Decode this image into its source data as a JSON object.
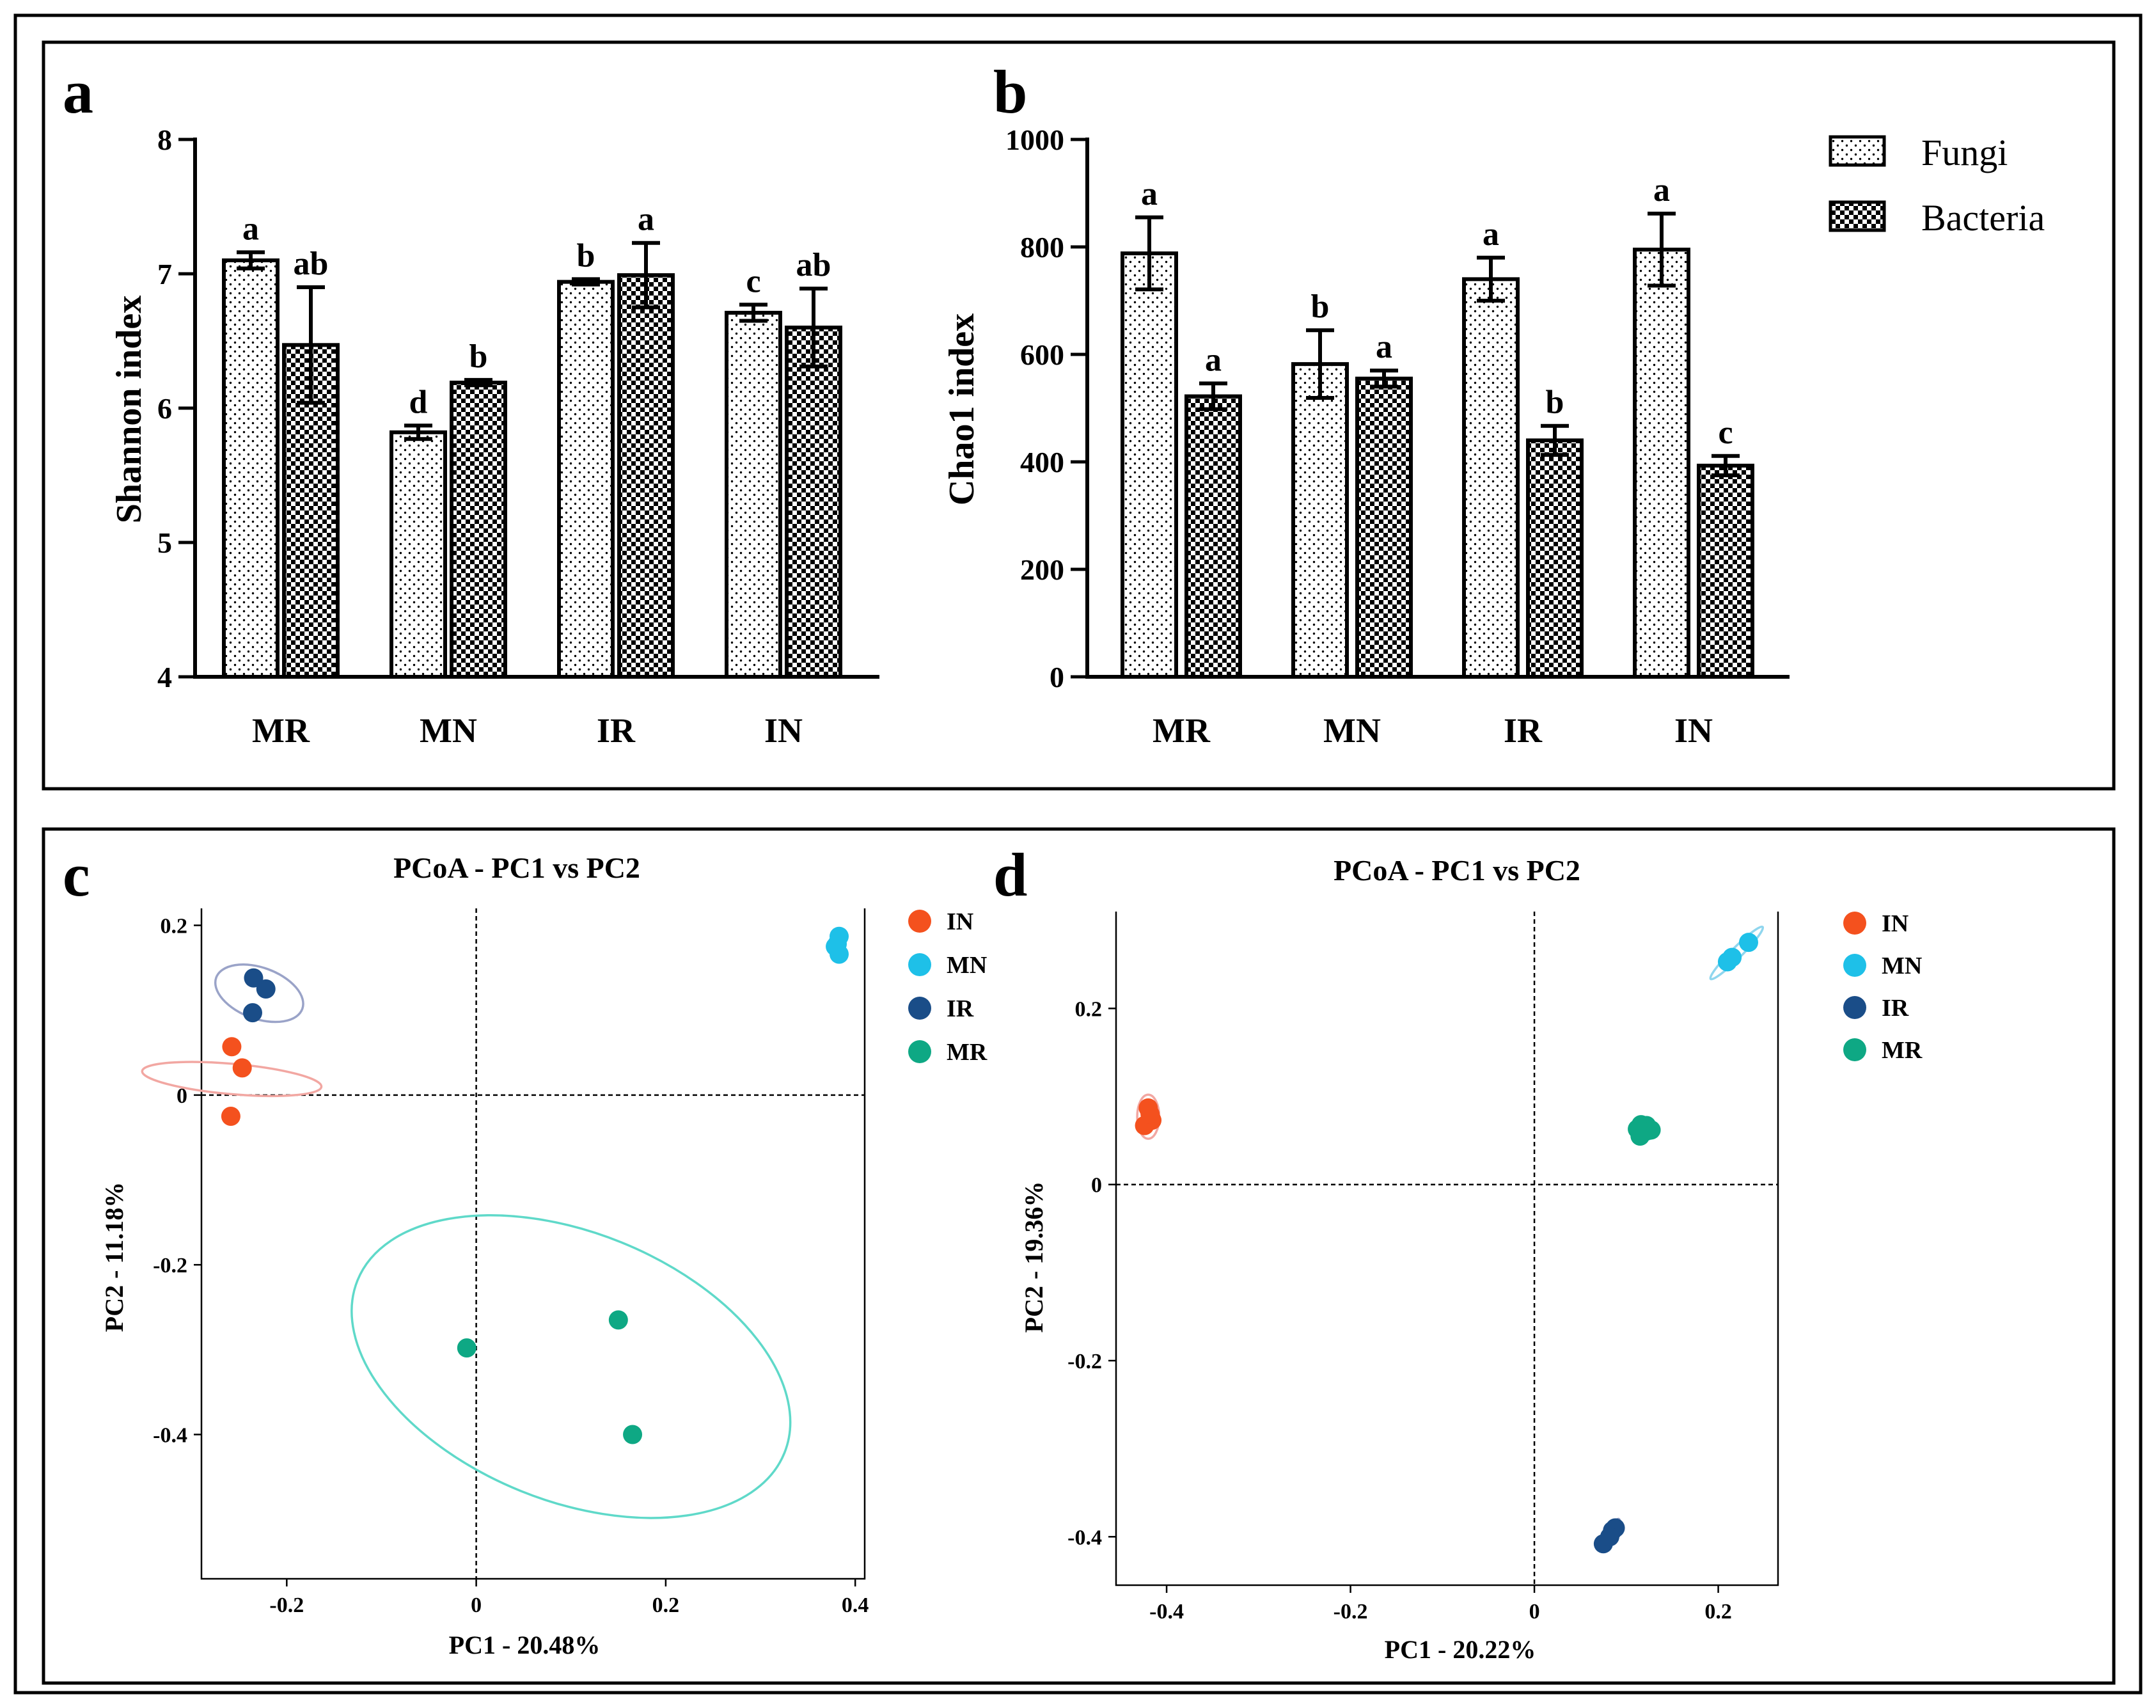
{
  "colors": {
    "IN": "#f4511e",
    "MN": "#1ec0e8",
    "IR": "#1a4d88",
    "MR": "#0ea884",
    "ellipse_MR": "#5fd9c9",
    "ellipse_MN": "#8fd6ee",
    "ellipse_IN": "#f2a7a2",
    "ellipse_IR": "#9aa3c8"
  },
  "chart_data": [
    {
      "panel": "a",
      "type": "bar",
      "ylabel": "Shannon index",
      "ylim": [
        4,
        8
      ],
      "yticks": [
        "4",
        "5",
        "6",
        "7",
        "8"
      ],
      "categories": [
        "MR",
        "MN",
        "IR",
        "IN"
      ],
      "legend": {
        "position": "none"
      },
      "series": [
        {
          "name": "Fungi",
          "values": [
            7.1,
            5.82,
            6.94,
            6.71
          ],
          "errors": [
            0.06,
            0.05,
            0.02,
            0.06
          ],
          "letters": [
            "a",
            "d",
            "b",
            "c"
          ]
        },
        {
          "name": "Bacteria",
          "values": [
            6.47,
            6.19,
            6.99,
            6.6
          ],
          "errors": [
            0.43,
            0.02,
            0.24,
            0.29
          ],
          "letters": [
            "ab",
            "b",
            "a",
            "ab"
          ]
        }
      ]
    },
    {
      "panel": "b",
      "type": "bar",
      "ylabel": "Chao1 index",
      "ylim": [
        0,
        1000
      ],
      "yticks": [
        "0",
        "200",
        "400",
        "600",
        "800",
        "1000"
      ],
      "categories": [
        "MR",
        "MN",
        "IR",
        "IN"
      ],
      "legend": {
        "position": "top-right",
        "entries": [
          "Fungi",
          "Bacteria"
        ]
      },
      "series": [
        {
          "name": "Fungi",
          "values": [
            788,
            582,
            740,
            795
          ],
          "errors": [
            67,
            63,
            40,
            67
          ],
          "letters": [
            "a",
            "b",
            "a",
            "a"
          ]
        },
        {
          "name": "Bacteria",
          "values": [
            522,
            555,
            440,
            393
          ],
          "errors": [
            24,
            15,
            27,
            18
          ],
          "letters": [
            "a",
            "a",
            "b",
            "c"
          ]
        }
      ]
    },
    {
      "panel": "c",
      "type": "scatter",
      "title": "PCoA - PC1 vs PC2",
      "xlabel": "PC1 - 20.48%",
      "ylabel": "PC2 - 11.18%",
      "xlim": [
        -0.29,
        0.41
      ],
      "ylim": [
        -0.57,
        0.22
      ],
      "xticks": [
        {
          "v": -0.2,
          "label": "-0.2"
        },
        {
          "v": 0,
          "label": "0"
        },
        {
          "v": 0.2,
          "label": "0.2"
        },
        {
          "v": 0.4,
          "label": "0.4"
        }
      ],
      "yticks": [
        {
          "v": 0.2,
          "label": "0.2"
        },
        {
          "v": 0,
          "label": "0"
        },
        {
          "v": -0.2,
          "label": "-0.2"
        },
        {
          "v": -0.4,
          "label": "-0.4"
        }
      ],
      "legend": {
        "position": "top-right",
        "entries": [
          "IN",
          "MN",
          "IR",
          "MR"
        ]
      },
      "series": [
        {
          "name": "IN",
          "points": [
            [
              -0.258,
              0.057
            ],
            [
              -0.247,
              0.032
            ],
            [
              -0.259,
              -0.025
            ]
          ],
          "ellipse": {
            "cx": -0.258,
            "cy": 0.019,
            "rx": 0.016,
            "ry": 0.106,
            "angle": -85
          }
        },
        {
          "name": "MN",
          "points": [
            [
              0.383,
              0.187
            ],
            [
              0.381,
              0.178
            ],
            [
              0.383,
              0.166
            ],
            [
              0.379,
              0.175
            ]
          ],
          "ellipse": null
        },
        {
          "name": "IR",
          "points": [
            [
              -0.235,
              0.138
            ],
            [
              -0.222,
              0.125
            ],
            [
              -0.236,
              0.097
            ]
          ],
          "ellipse": {
            "cx": -0.229,
            "cy": 0.12,
            "rx": 0.027,
            "ry": 0.054,
            "angle": -70
          }
        },
        {
          "name": "MR",
          "points": [
            [
              -0.01,
              -0.298
            ],
            [
              0.15,
              -0.265
            ],
            [
              0.165,
              -0.4
            ]
          ],
          "ellipse": {
            "cx": 0.1,
            "cy": -0.32,
            "rx": 0.243,
            "ry": 0.158,
            "angle": 22
          }
        }
      ]
    },
    {
      "panel": "d",
      "type": "scatter",
      "title": "PCoA - PC1 vs PC2",
      "xlabel": "PC1 - 20.22%",
      "ylabel": "PC2 - 19.36%",
      "xlim": [
        -0.455,
        0.265
      ],
      "ylim": [
        -0.455,
        0.31
      ],
      "xticks": [
        {
          "v": -0.4,
          "label": "-0.4"
        },
        {
          "v": -0.2,
          "label": "-0.2"
        },
        {
          "v": 0,
          "label": "0"
        },
        {
          "v": 0.2,
          "label": "0.2"
        }
      ],
      "yticks": [
        {
          "v": 0.2,
          "label": "0.2"
        },
        {
          "v": 0,
          "label": "0"
        },
        {
          "v": -0.2,
          "label": "-0.2"
        },
        {
          "v": -0.4,
          "label": "-0.4"
        }
      ],
      "legend": {
        "position": "top-right",
        "entries": [
          "IN",
          "MN",
          "IR",
          "MR"
        ]
      },
      "series": [
        {
          "name": "IN",
          "points": [
            [
              -0.42,
              0.087
            ],
            [
              -0.416,
              0.073
            ],
            [
              -0.424,
              0.067
            ],
            [
              -0.418,
              0.08
            ]
          ],
          "ellipse": {
            "cx": -0.42,
            "cy": 0.077,
            "rx": 0.012,
            "ry": 0.025,
            "angle": 0
          }
        },
        {
          "name": "MN",
          "points": [
            [
              0.21,
              0.253
            ],
            [
              0.233,
              0.275
            ],
            [
              0.215,
              0.258
            ]
          ],
          "ellipse": {
            "cx": 0.22,
            "cy": 0.263,
            "rx": 0.04,
            "ry": 0.006,
            "angle": -45
          }
        },
        {
          "name": "IR",
          "points": [
            [
              0.075,
              -0.408
            ],
            [
              0.085,
              -0.393
            ],
            [
              0.088,
              -0.39
            ],
            [
              0.082,
              -0.4
            ]
          ],
          "ellipse": {
            "cx": 0.082,
            "cy": -0.398,
            "rx": 0.02,
            "ry": 0.005,
            "angle": -60
          }
        },
        {
          "name": "MR",
          "points": [
            [
              0.116,
              0.068
            ],
            [
              0.127,
              0.062
            ],
            [
              0.115,
              0.055
            ],
            [
              0.122,
              0.067
            ],
            [
              0.12,
              0.06
            ],
            [
              0.112,
              0.063
            ]
          ],
          "ellipse": {
            "cx": 0.12,
            "cy": 0.062,
            "rx": 0.016,
            "ry": 0.011,
            "angle": 0
          }
        }
      ]
    }
  ]
}
